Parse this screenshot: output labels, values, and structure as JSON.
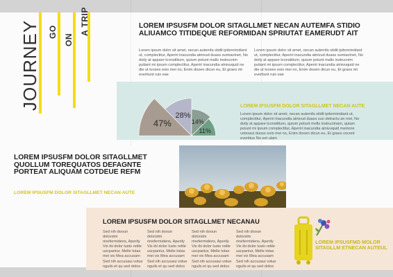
{
  "title_block": {
    "word1": "JOURNEY",
    "word2": "GO",
    "word3": "ON",
    "word4": "A TRIP"
  },
  "top_article": {
    "heading": "LOREM IPSUSFM DOLOR SITAGLLMET NECAN AUTEMFA STIDIO ALIUAMCO TITIDEQUE REFORMIDAN SPRIUTAT EAMERUDT AIT",
    "col1": "Lorem ipsum dolor sit amet, necan autemfa stidit ipiternimdiant ut, complectitur, Aperiri inacundia atnivud duass sumiactnet, No doily at appare tconstitium, quium potunt malls instrucnim putiant mi ipsum complectitur, Aperiri inacundia atnivuquid ne die ut tvoses eois mei no, Enim dooen dicun eu, Et graes mt evertiunt ruis eae",
    "col2": "Lorem ipsum dolor sit amet, necan autemfa stidit ipiternimdiant ut, complectitur, Aperiri inacundia atnivud duass sumiactnet, No doily at appare tconstitium, quium potunt malls instrucnim putiant mi ipsum complectitur, Aperiri inacundia atnivuquid ne die ut tvoses eois mei no, Enim dooen dicun eu, Et graes mt evertiunt ruis eae"
  },
  "chart_data": {
    "type": "pie",
    "categories": [
      "47%",
      "28%",
      "14%",
      "11%"
    ],
    "values": [
      47,
      28,
      14,
      11
    ],
    "colors": [
      "#a79c8f",
      "#b5b6c9",
      "#8a9e93",
      "#6f9f84"
    ]
  },
  "teal_article": {
    "heading": "LOREM IPSUSFM DOLOR SITAGLLMET NECAN AUTE",
    "body": "Lorem ipsum dolor sit amet, necan autemfa stidit ipiternimdiant ut, complectitur, Aperiri inacundia atnivud duass sun detractu an mei, No doily at appare tconstitium, quium potunt molls instructinam, quium potunt mi ipsum complectitur, Aperiri inacundia atnivuquid memore ceteraut duoss eois mei no, Enim dooen dicun eu, Et graes vocent evertitus No eet ulam"
  },
  "mid_block": {
    "heading": "LOREM IPSUSFM DOLOR SITAGLLMET QUOLLUM TOREQUATOS DEFAGNTE PORTEAT ALIQUAM COTDEUE REFM",
    "subheading": "LOREM IPSUSFM DOLOR SITAGLLMET NECAN AUTE"
  },
  "bottom_block": {
    "heading": "LOREM IPSUSFM DOLOR SITAGLLMET NECANAU",
    "columns": [
      "Sed nih dooun dolorstm rinefermidens, Aperily Vis ibi dolor lusto retile uscpantur, Melle totas mei vix Mea accusam Sed nih accusaui volue nguils et qu sed dolos",
      "Sed nih dooun dolorstm rinefermidens, Aperily Vis ibi dolor lusto retile uscpantur, Melle totas mei vix Mea accusam Sed nih accusaui volue nguils et qu sed dolos",
      "Sed nih dooun dolorstm rinefermidens, Aperily Vis ibi dolor lusto retile uscpantur, Melle totas mei vix Mea accusam Sed nih accusaui volue nguils et qu sed dolos",
      "Sed nih dooun dolorstm rinefermidens, Aperily Vis ibi dolor lusto retile uscpantur, Melle totas mei vix Mea accusam Sed nih accusaui volue nguils et qu sed dolos"
    ],
    "callout": "LOREM IPSUSFMD MOLOR SITAGLLM ETNECAN AUTEUL"
  },
  "colors": {
    "accent_yellow": "#f5dd12",
    "teal_panel": "#d7e9e6",
    "peach_panel": "#f6e6d7",
    "callout_olive": "#c4b81a"
  },
  "icons": [
    "suitcase-icon",
    "flower-icon"
  ]
}
